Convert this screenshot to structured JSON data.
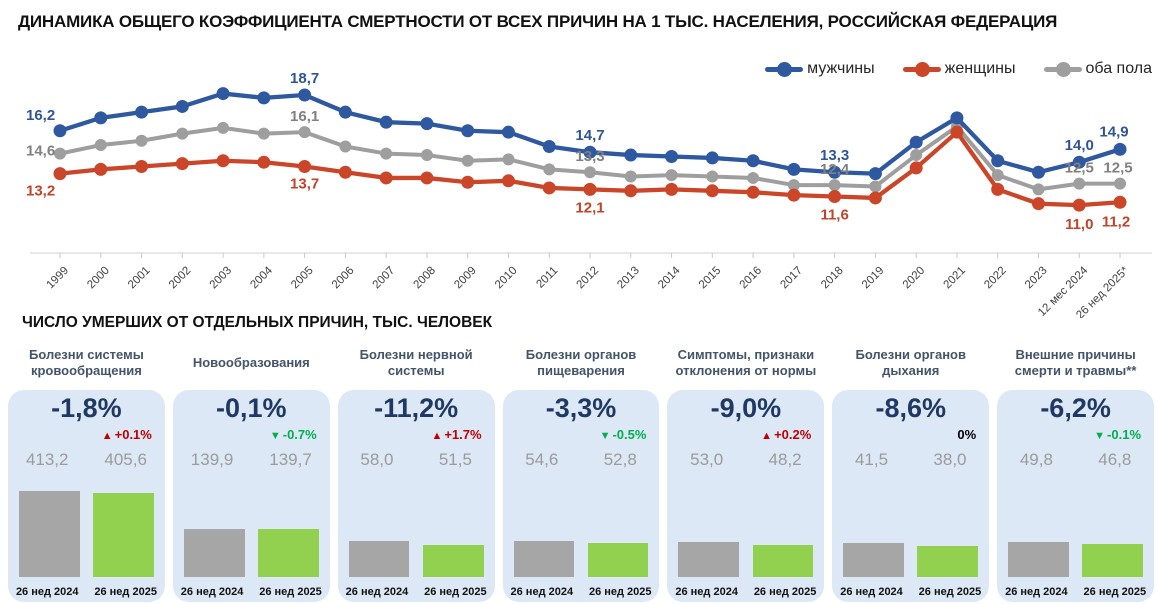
{
  "title": "ДИНАМИКА ОБЩЕГО КОЭФФИЦИЕНТА СМЕРТНОСТИ ОТ ВСЕХ ПРИЧИН НА 1 ТЫС. НАСЕЛЕНИЯ, РОССИЙСКАЯ ФЕДЕРАЦИЯ",
  "section_title": "ЧИСЛО УМЕРШИХ ОТ ОТДЕЛЬНЫХ ПРИЧИН, ТЫС. ЧЕЛОВЕК",
  "palette": {
    "men_blue": "#2E59A0",
    "women_red": "#CB4628",
    "both_gray": "#9E9E9E",
    "men_label": "#2F5597",
    "women_label": "#C0442A",
    "both_label": "#808080",
    "accent_navy": "#1F3864",
    "card_bg": "#DCE8F5",
    "bar_gray": "#A6A6A6",
    "bar_green": "#92D050",
    "delta_red": "#C00000",
    "delta_green": "#00B050",
    "axis_line": "#d0d0d0"
  },
  "chart_data": {
    "type": "line",
    "title": "ДИНАМИКА ОБЩЕГО КОЭФФИЦИЕНТА СМЕРТНОСТИ ОТ ВСЕХ ПРИЧИН НА 1 ТЫС. НАСЕЛЕНИЯ, РОССИЙСКАЯ ФЕДЕРАЦИЯ",
    "xlabel": "",
    "ylabel": "",
    "ylim": [
      10.5,
      19.5
    ],
    "grid": false,
    "legend_position": "top-right",
    "categories": [
      "1999",
      "2000",
      "2001",
      "2002",
      "2003",
      "2004",
      "2005",
      "2006",
      "2007",
      "2008",
      "2009",
      "2010",
      "2011",
      "2012",
      "2013",
      "2014",
      "2015",
      "2016",
      "2017",
      "2018",
      "2019",
      "2020",
      "2021",
      "2022",
      "2023",
      "12 мес 2024",
      "26 нед 2025*"
    ],
    "series": [
      {
        "key": "men",
        "name": "мужчины",
        "color": "#2E59A0",
        "label_color": "#2F5597",
        "values": [
          16.2,
          17.1,
          17.5,
          17.9,
          18.8,
          18.5,
          18.7,
          17.5,
          16.8,
          16.7,
          16.2,
          16.1,
          15.1,
          14.7,
          14.5,
          14.4,
          14.3,
          14.1,
          13.5,
          13.3,
          13.2,
          15.4,
          17.1,
          14.1,
          13.3,
          14.0,
          14.9
        ],
        "labels": [
          {
            "i": 0,
            "t": "16,2",
            "dx": -34,
            "dy": -11,
            "a": "start"
          },
          {
            "i": 6,
            "t": "18,7",
            "dy": -12
          },
          {
            "i": 13,
            "t": "14,7",
            "dy": -12
          },
          {
            "i": 19,
            "t": "13,3",
            "dy": -12
          },
          {
            "i": 25,
            "t": "14,0",
            "dy": -12
          },
          {
            "i": 26,
            "t": "14,9",
            "dx": -6,
            "dy": -13
          }
        ]
      },
      {
        "key": "women",
        "name": "женщины",
        "color": "#CB4628",
        "label_color": "#C0442A",
        "values": [
          13.2,
          13.5,
          13.7,
          13.9,
          14.1,
          14.0,
          13.7,
          13.3,
          12.9,
          12.9,
          12.6,
          12.7,
          12.2,
          12.1,
          12.0,
          12.1,
          12.0,
          11.9,
          11.7,
          11.6,
          11.5,
          13.6,
          16.1,
          12.1,
          11.1,
          11.0,
          11.2
        ],
        "labels": [
          {
            "i": 0,
            "t": "13,2",
            "dx": -34,
            "dy": 22,
            "a": "start"
          },
          {
            "i": 6,
            "t": "13,7",
            "dy": 22
          },
          {
            "i": 13,
            "t": "12,1",
            "dy": 23
          },
          {
            "i": 19,
            "t": "11,6",
            "dy": 23
          },
          {
            "i": 25,
            "t": "11,0",
            "dy": 24
          },
          {
            "i": 26,
            "t": "11,2",
            "dx": -4,
            "dy": 24
          }
        ]
      },
      {
        "key": "both",
        "name": "оба пола",
        "color": "#9E9E9E",
        "label_color": "#808080",
        "values": [
          14.6,
          15.2,
          15.5,
          16.0,
          16.4,
          16.0,
          16.1,
          15.1,
          14.6,
          14.5,
          14.1,
          14.2,
          13.5,
          13.3,
          13.0,
          13.1,
          13.0,
          12.9,
          12.4,
          12.4,
          12.3,
          14.5,
          16.5,
          13.1,
          12.1,
          12.5,
          12.5
        ],
        "labels": [
          {
            "i": 0,
            "t": "14,6",
            "dx": -34,
            "dy": 2,
            "a": "start"
          },
          {
            "i": 6,
            "t": "16,1",
            "dy": -11
          },
          {
            "i": 13,
            "t": "13,3",
            "dy": -11
          },
          {
            "i": 19,
            "t": "12,4",
            "dy": -11
          },
          {
            "i": 25,
            "t": "12,5",
            "dy": -11
          },
          {
            "i": 26,
            "t": "12,5",
            "dx": -2,
            "dy": -11
          }
        ]
      }
    ]
  },
  "cards_common": {
    "period_2024": "26 нед 2024",
    "period_2025": "26 нед 2025"
  },
  "cards": [
    {
      "title": "Болезни системы кровообращения",
      "change": "-1,8%",
      "delta": "+0.1%",
      "delta_dir": "up",
      "delta_color": "red",
      "v2024": "413,2",
      "v2025": "405,6",
      "n2024": 413.2,
      "n2025": 405.6
    },
    {
      "title": "Новообразования",
      "change": "-0,1%",
      "delta": "-0.7%",
      "delta_dir": "down",
      "delta_color": "green",
      "v2024": "139,9",
      "v2025": "139,7",
      "n2024": 139.9,
      "n2025": 139.7
    },
    {
      "title": "Болезни нервной системы",
      "change": "-11,2%",
      "delta": "+1.7%",
      "delta_dir": "up",
      "delta_color": "red",
      "v2024": "58,0",
      "v2025": "51,5",
      "n2024": 58.0,
      "n2025": 51.5
    },
    {
      "title": "Болезни органов пищеварения",
      "change": "-3,3%",
      "delta": "-0.5%",
      "delta_dir": "down",
      "delta_color": "green",
      "v2024": "54,6",
      "v2025": "52,8",
      "n2024": 54.6,
      "n2025": 52.8
    },
    {
      "title": "Симптомы, признаки отклонения от нормы",
      "change": "-9,0%",
      "delta": "+0.2%",
      "delta_dir": "up",
      "delta_color": "red",
      "v2024": "53,0",
      "v2025": "48,2",
      "n2024": 53.0,
      "n2025": 48.2
    },
    {
      "title": "Болезни органов дыхания",
      "change": "-8,6%",
      "delta": "0%",
      "delta_dir": "none",
      "delta_color": "black",
      "v2024": "41,5",
      "v2025": "38,0",
      "n2024": 41.5,
      "n2025": 38.0
    },
    {
      "title": "Внешние причины смерти и травмы**",
      "change": "-6,2%",
      "delta": "-0.1%",
      "delta_dir": "down",
      "delta_color": "green",
      "v2024": "49,8",
      "v2025": "46,8",
      "n2024": 49.8,
      "n2025": 46.8
    }
  ]
}
